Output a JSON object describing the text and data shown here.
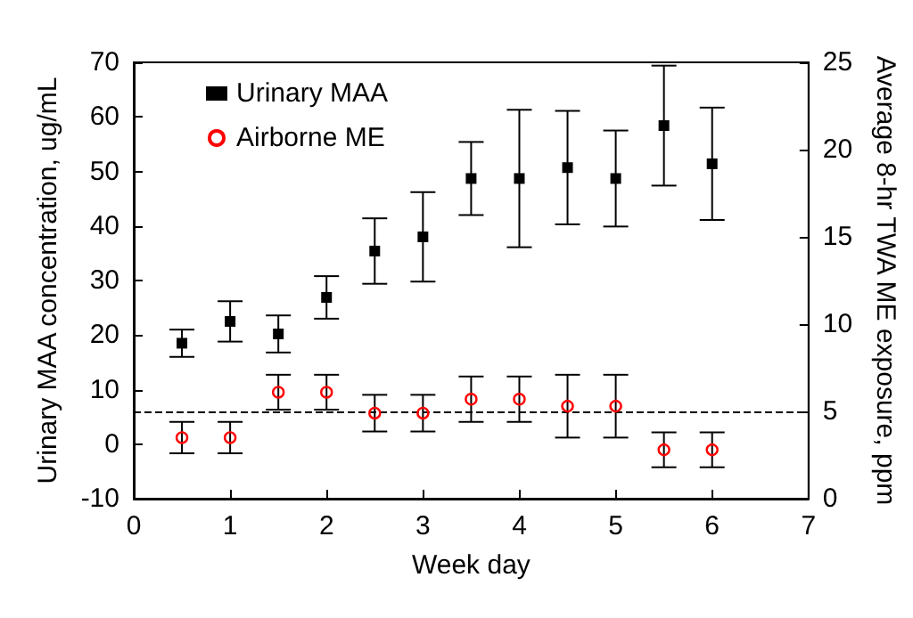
{
  "chart_data": {
    "type": "scatter",
    "xlabel": "Week day",
    "ylabel": "Urinary MAA concentration, ug/mL",
    "y2label": "Average 8-hr TWA ME exposure, ppm",
    "x": [
      0.5,
      1,
      1.5,
      2,
      2.5,
      3,
      3.5,
      4,
      4.5,
      5,
      5.5,
      6
    ],
    "series": [
      {
        "name": "Urinary MAA",
        "color": "#000000",
        "marker": "square",
        "values": [
          18.5,
          22.5,
          20.2,
          26.9,
          35.4,
          38,
          48.7,
          48.7,
          50.7,
          48.7,
          58.4,
          51.4
        ],
        "errors": [
          2.5,
          3.7,
          3.4,
          3.9,
          6,
          8.2,
          6.7,
          12.6,
          10.4,
          8.8,
          11,
          10.3
        ]
      },
      {
        "name": "Airborne ME",
        "color": "#ff0000",
        "marker": "circle",
        "axis": "y2",
        "values": [
          3.5,
          3.5,
          6.1,
          6.1,
          4.9,
          4.9,
          5.7,
          5.7,
          5.3,
          5.3,
          2.8,
          2.8
        ],
        "errors": [
          0.9,
          0.9,
          1,
          1,
          1.05,
          1.05,
          1.3,
          1.3,
          1.8,
          1.8,
          1,
          1
        ]
      }
    ],
    "xlim": [
      0,
      7
    ],
    "xticks": [
      0,
      1,
      2,
      3,
      4,
      5,
      6,
      7
    ],
    "ylim": [
      -10,
      70
    ],
    "yticks": [
      -10,
      0,
      10,
      20,
      30,
      40,
      50,
      60,
      70
    ],
    "y2lim": [
      0,
      25
    ],
    "y2ticks": [
      0,
      5,
      10,
      15,
      20,
      25
    ],
    "ref_lines": [
      {
        "axis": "y2",
        "value": 5,
        "line_style": "dashed",
        "color": "#000000"
      }
    ],
    "grid": false,
    "legend": "top left"
  }
}
